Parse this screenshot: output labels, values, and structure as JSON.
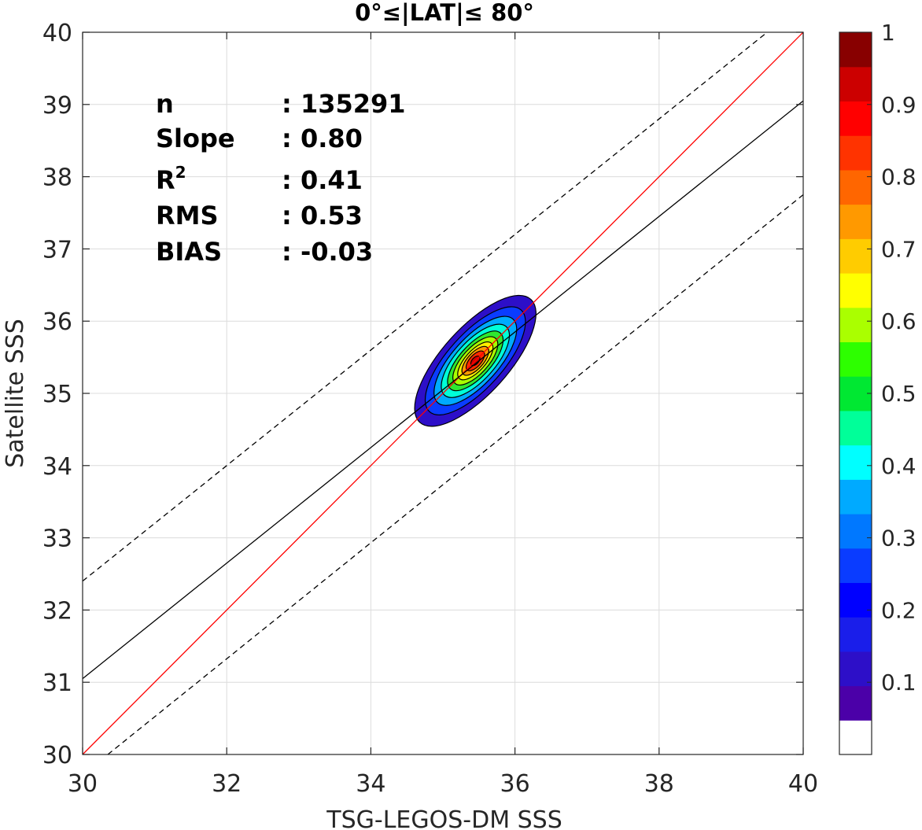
{
  "chart_data": {
    "type": "heatmap",
    "title": "0°≤|LAT|≤ 80°",
    "xlabel": "TSG-LEGOS-DM SSS",
    "ylabel": "Satellite SSS",
    "xlim": [
      30,
      40
    ],
    "ylim": [
      30,
      40
    ],
    "xticks": [
      "30",
      "32",
      "34",
      "36",
      "38",
      "40"
    ],
    "yticks": [
      "30",
      "31",
      "32",
      "33",
      "34",
      "35",
      "36",
      "37",
      "38",
      "39",
      "40"
    ],
    "grid": true,
    "stats": [
      {
        "label": "n",
        "sep": ":",
        "value": "135291"
      },
      {
        "label": "Slope",
        "sep": ":",
        "value": "0.80"
      },
      {
        "label": "R",
        "sup": "2",
        "sep": ":",
        "value": "0.41"
      },
      {
        "label": "RMS",
        "sep": ":",
        "value": "0.53"
      },
      {
        "label": "BIAS",
        "sep": ":",
        "value": "-0.03"
      }
    ],
    "reference_lines": [
      {
        "kind": "one-to-one",
        "color": "#ff0000",
        "style": "solid",
        "points": [
          [
            30,
            30
          ],
          [
            40,
            40
          ]
        ]
      },
      {
        "kind": "regression",
        "color": "#000000",
        "style": "solid",
        "points": [
          [
            30,
            31.05
          ],
          [
            40,
            39.05
          ]
        ]
      },
      {
        "kind": "upper-bound",
        "color": "#000000",
        "style": "dashed",
        "points": [
          [
            30,
            32.4
          ],
          [
            39.5,
            40
          ]
        ]
      },
      {
        "kind": "lower-bound",
        "color": "#000000",
        "style": "dashed",
        "points": [
          [
            30.35,
            30
          ],
          [
            40,
            37.75
          ]
        ]
      }
    ],
    "density": {
      "center": [
        35.45,
        35.45
      ],
      "contours": [
        {
          "level": 0.05,
          "color": "#2d0fc8",
          "rx": 1.15,
          "ry": 0.46
        },
        {
          "level": 0.15,
          "color": "#0a3cff",
          "rx": 0.95,
          "ry": 0.38
        },
        {
          "level": 0.25,
          "color": "#00aaff",
          "rx": 0.78,
          "ry": 0.32
        },
        {
          "level": 0.35,
          "color": "#00ffd8",
          "rx": 0.64,
          "ry": 0.27
        },
        {
          "level": 0.45,
          "color": "#2fe830",
          "rx": 0.52,
          "ry": 0.22
        },
        {
          "level": 0.55,
          "color": "#aaff00",
          "rx": 0.42,
          "ry": 0.18
        },
        {
          "level": 0.65,
          "color": "#ffee00",
          "rx": 0.33,
          "ry": 0.14
        },
        {
          "level": 0.75,
          "color": "#ff9900",
          "rx": 0.25,
          "ry": 0.11
        },
        {
          "level": 0.85,
          "color": "#ff2a00",
          "rx": 0.17,
          "ry": 0.08
        },
        {
          "level": 0.95,
          "color": "#cc0000",
          "rx": 0.08,
          "ry": 0.045
        }
      ]
    },
    "colorbar": {
      "range": [
        0,
        1
      ],
      "ticks": [
        "0.1",
        "0.2",
        "0.3",
        "0.4",
        "0.5",
        "0.6",
        "0.7",
        "0.8",
        "0.9",
        "1"
      ],
      "colors": [
        "#ffffff",
        "#4b00a8",
        "#2d0fc8",
        "#1a1eea",
        "#0000ff",
        "#0a3cff",
        "#0078ff",
        "#00aaff",
        "#00ffff",
        "#00ff99",
        "#00e832",
        "#2dff00",
        "#aaff00",
        "#ffff00",
        "#ffcc00",
        "#ff9900",
        "#ff6600",
        "#ff3300",
        "#ff0000",
        "#cc0000",
        "#880000"
      ]
    }
  }
}
